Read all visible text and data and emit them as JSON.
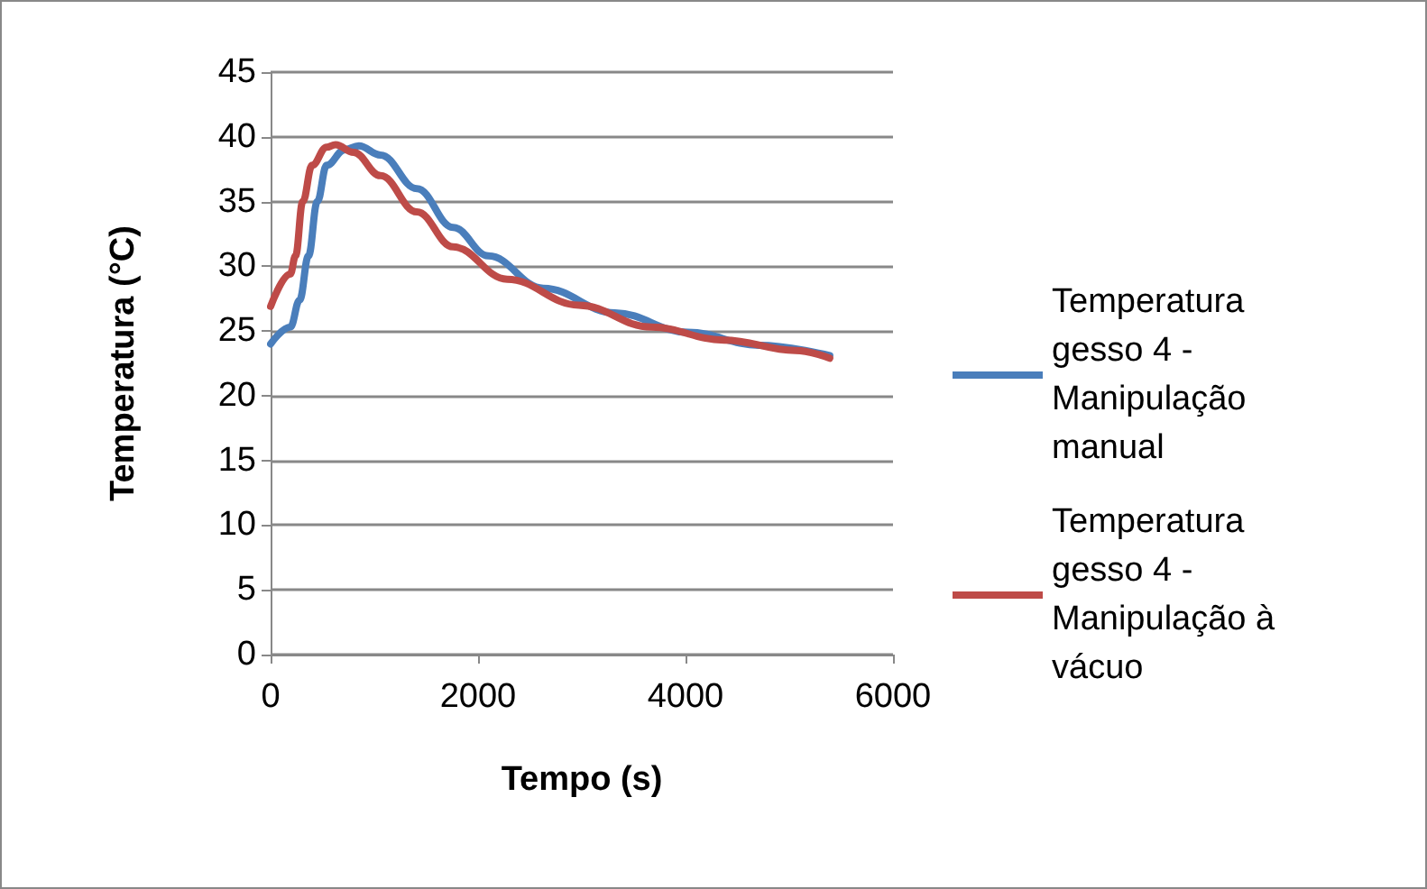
{
  "chart_data": {
    "type": "line",
    "xlabel": "Tempo (s)",
    "ylabel": "Temperatura (°C)",
    "xlim": [
      0,
      6000
    ],
    "xticks": [
      0,
      2000,
      4000,
      6000
    ],
    "ylim": [
      0,
      45
    ],
    "yticks": [
      0,
      5,
      10,
      15,
      20,
      25,
      30,
      35,
      40,
      45
    ],
    "grid": "y",
    "legend": "right",
    "marker": "none",
    "line_style": "solid",
    "series": [
      {
        "name": "Temperatura gesso 4 - Manipulação manual",
        "color": "#4a7ebb",
        "x": [
          0,
          190,
          280,
          365,
          450,
          540,
          713,
          850,
          1060,
          1410,
          1760,
          2100,
          2630,
          3320,
          4020,
          4710,
          5390
        ],
        "values": [
          24,
          25.3,
          27.4,
          30.8,
          35,
          37.8,
          39,
          39.3,
          38.6,
          36,
          33,
          30.8,
          28.3,
          26.4,
          24.9,
          23.9,
          23.1
        ]
      },
      {
        "name": "Temperatura gesso 4 - Manipulação à vácuo",
        "color": "#be4b48",
        "x": [
          0,
          190,
          240,
          310,
          400,
          540,
          626,
          800,
          1060,
          1410,
          1760,
          2280,
          2970,
          3670,
          4370,
          5060,
          5390
        ],
        "values": [
          26.9,
          29.4,
          30.8,
          35,
          37.8,
          39.2,
          39.4,
          38.8,
          37,
          34.2,
          31.5,
          29,
          27,
          25.3,
          24.3,
          23.5,
          22.9
        ]
      }
    ]
  }
}
